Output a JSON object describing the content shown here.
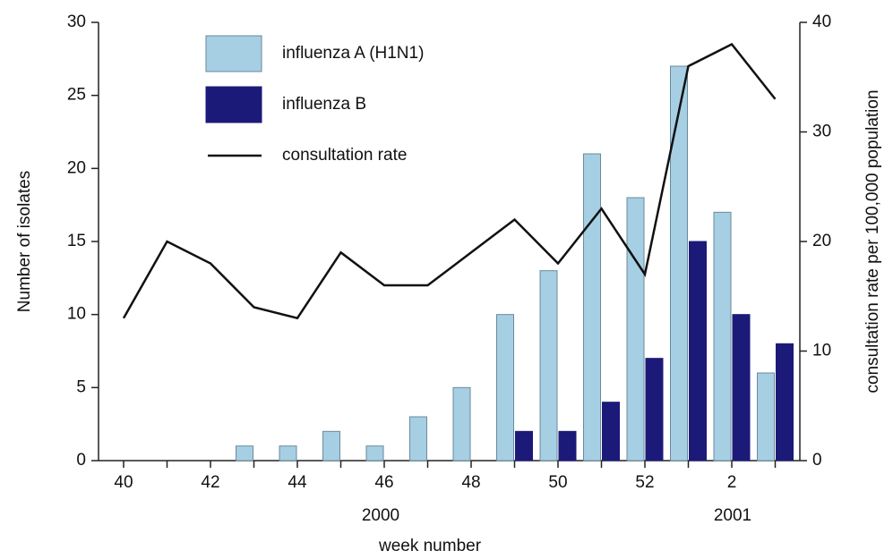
{
  "chart_data": {
    "type": "bar",
    "x_label": "week number",
    "y_label": "Number of isolates",
    "y2_label": "consultation rate per 100,000 population",
    "annotations": [
      "2000",
      "2001"
    ],
    "categories": [
      "40",
      null,
      "42",
      null,
      "44",
      null,
      "46",
      null,
      "48",
      null,
      "50",
      null,
      "52",
      null,
      "2",
      null
    ],
    "series": [
      {
        "name": "influenza A (H1N1)",
        "type": "bar",
        "color": "#a6cfe4",
        "values": [
          0,
          0,
          0,
          1,
          1,
          2,
          1,
          3,
          5,
          10,
          13,
          21,
          18,
          27,
          17,
          6
        ]
      },
      {
        "name": "influenza B",
        "type": "bar",
        "color": "#1c1a78",
        "values": [
          0,
          0,
          0,
          0,
          0,
          0,
          0,
          0,
          0,
          2,
          2,
          4,
          7,
          15,
          10,
          8
        ]
      },
      {
        "name": "consultation rate",
        "type": "line",
        "axis": "y2",
        "color": "#111111",
        "values": [
          13,
          20,
          18,
          14,
          13,
          19,
          16,
          16,
          19,
          22,
          18,
          23,
          17,
          36,
          38,
          33
        ]
      }
    ],
    "ylim": [
      0,
      30
    ],
    "yticks": [
      0,
      5,
      10,
      15,
      20,
      25,
      30
    ],
    "y2lim": [
      0,
      40
    ],
    "y2ticks": [
      0,
      10,
      20,
      30,
      40
    ],
    "grid": false
  }
}
